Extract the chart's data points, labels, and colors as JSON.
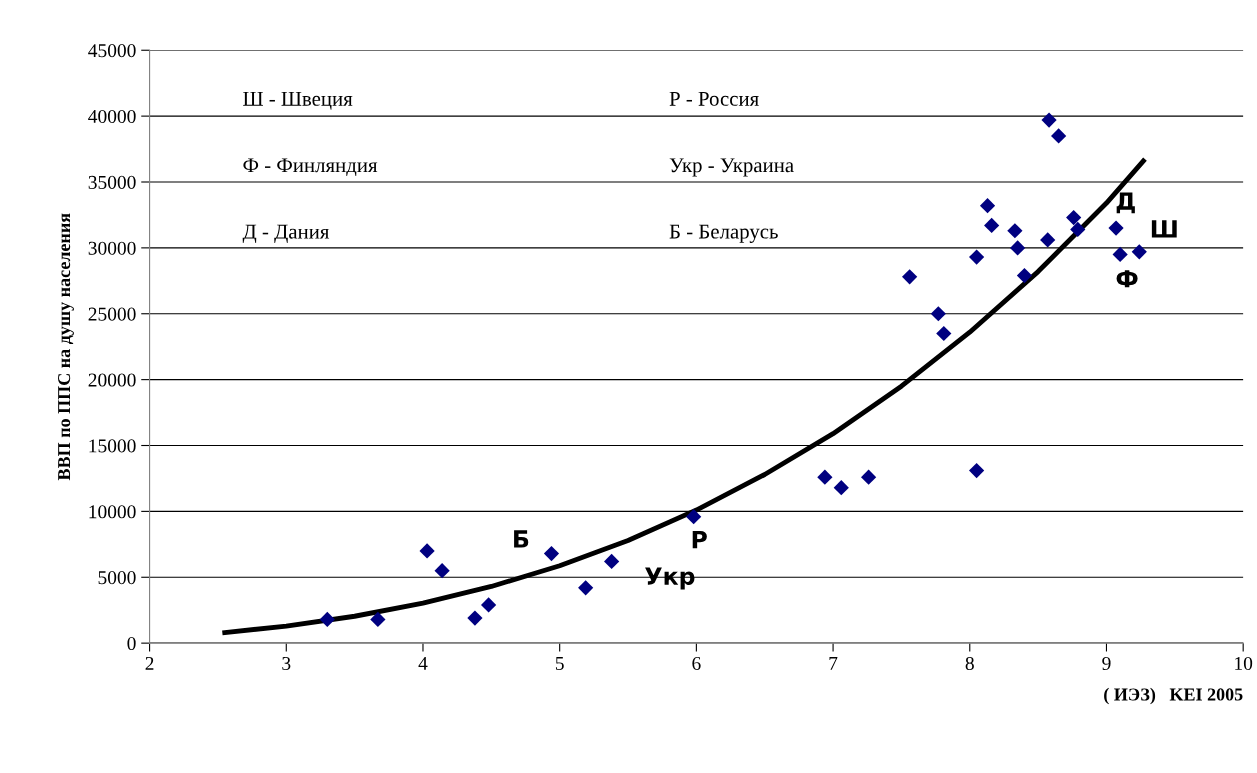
{
  "chart_data": {
    "type": "scatter",
    "xlabel": "( ИЭЗ)   KEI 2005",
    "ylabel": "ВВП по ППС на душу населения",
    "xlim": [
      2,
      10
    ],
    "xticks": [
      2,
      3,
      4,
      5,
      6,
      7,
      8,
      9,
      10
    ],
    "ylim": [
      0,
      45000
    ],
    "yticks": [
      0,
      5000,
      10000,
      15000,
      20000,
      25000,
      30000,
      35000,
      40000,
      45000
    ],
    "grid": "y",
    "marker": "diamond",
    "legend": false,
    "series": [
      {
        "color": "#000080",
        "x": [
          3.3,
          3.67,
          4.03,
          4.14,
          4.38,
          4.48,
          4.94,
          5.19,
          5.38,
          5.98,
          6.94,
          7.06,
          7.26,
          7.56,
          7.77,
          7.81,
          8.05,
          8.05,
          8.13,
          8.16,
          8.33,
          8.35,
          8.4,
          8.57,
          8.58,
          8.65,
          8.76,
          8.79,
          9.07,
          9.1,
          9.24
        ],
        "values": [
          1800,
          1800,
          7000,
          5500,
          1900,
          2900,
          6800,
          4200,
          6200,
          9600,
          12600,
          11800,
          12600,
          27800,
          25000,
          23500,
          29300,
          13100,
          33200,
          31700,
          31300,
          30000,
          27900,
          30600,
          39700,
          38500,
          32300,
          31400,
          31500,
          29500,
          29700
        ]
      },
      {
        "type": "line",
        "color": "#000000",
        "marker": "none",
        "x": [
          2.55,
          3,
          3.5,
          4,
          4.5,
          5,
          5.5,
          6,
          6.5,
          7,
          7.5,
          8,
          8.5,
          9,
          9.27
        ],
        "values": [
          800,
          1290,
          2040,
          3030,
          4300,
          5870,
          7790,
          10100,
          12800,
          15900,
          19500,
          23600,
          28200,
          33400,
          36600
        ]
      }
    ],
    "annotations": [
      "Ш - Швеция",
      "Р - Россия",
      "Ф - Финляндия",
      "Укр - Украина",
      "Д - Дания",
      "Б - Беларусь",
      {
        "text": "Б",
        "x": 4.94,
        "y": 6800
      },
      {
        "text": "Р",
        "x": 5.98,
        "y": 9600
      },
      {
        "text": "Укр",
        "x": 5.38,
        "y": 6200
      },
      {
        "text": "Д",
        "x": 9.07,
        "y": 31500
      },
      {
        "text": "Ш",
        "x": 9.24,
        "y": 29700
      },
      {
        "text": "Ф",
        "x": 9.1,
        "y": 29500
      }
    ]
  }
}
